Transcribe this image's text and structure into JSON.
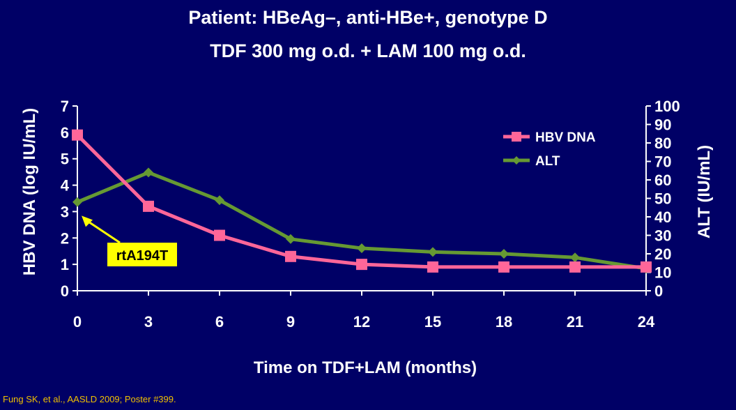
{
  "slide": {
    "title_line1": "Patient: HBeAg–, anti-HBe+, genotype D",
    "title_line2": "TDF 300 mg o.d. + LAM 100 mg o.d.",
    "citation": "Fung SK, et al., AASLD 2009; Poster #399.",
    "background_color": "#000066"
  },
  "chart_data": {
    "type": "line",
    "categories": [
      "0",
      "3",
      "6",
      "9",
      "12",
      "15",
      "18",
      "21",
      "24"
    ],
    "xlabel": "Time on TDF+LAM (months)",
    "ylabel": "HBV DNA (log IU/mL)",
    "ylabel_right": "ALT (IU/mL)",
    "ylim": [
      0,
      7
    ],
    "ylim_right": [
      0,
      100
    ],
    "yticks": [
      "0",
      "1",
      "2",
      "3",
      "4",
      "5",
      "6",
      "7"
    ],
    "yticks_right": [
      "0",
      "10",
      "20",
      "30",
      "40",
      "50",
      "60",
      "70",
      "80",
      "90",
      "100"
    ],
    "grid": false,
    "legend_position": "top-right",
    "series": [
      {
        "name": "HBV DNA",
        "axis": "left",
        "color": "#ff6699",
        "marker": "square",
        "values": [
          5.9,
          3.2,
          2.1,
          1.3,
          1.0,
          0.9,
          0.9,
          0.9,
          0.9
        ]
      },
      {
        "name": "ALT",
        "axis": "right",
        "color": "#669933",
        "marker": "diamond",
        "values": [
          48,
          64,
          49,
          28,
          23,
          21,
          20,
          18,
          12
        ]
      }
    ],
    "annotations": [
      {
        "text": "rtA194T",
        "x": "0",
        "series": "HBV DNA",
        "style": "yellow-box",
        "box_color": "#ffff00",
        "arrow_color": "#ffff00"
      }
    ]
  }
}
